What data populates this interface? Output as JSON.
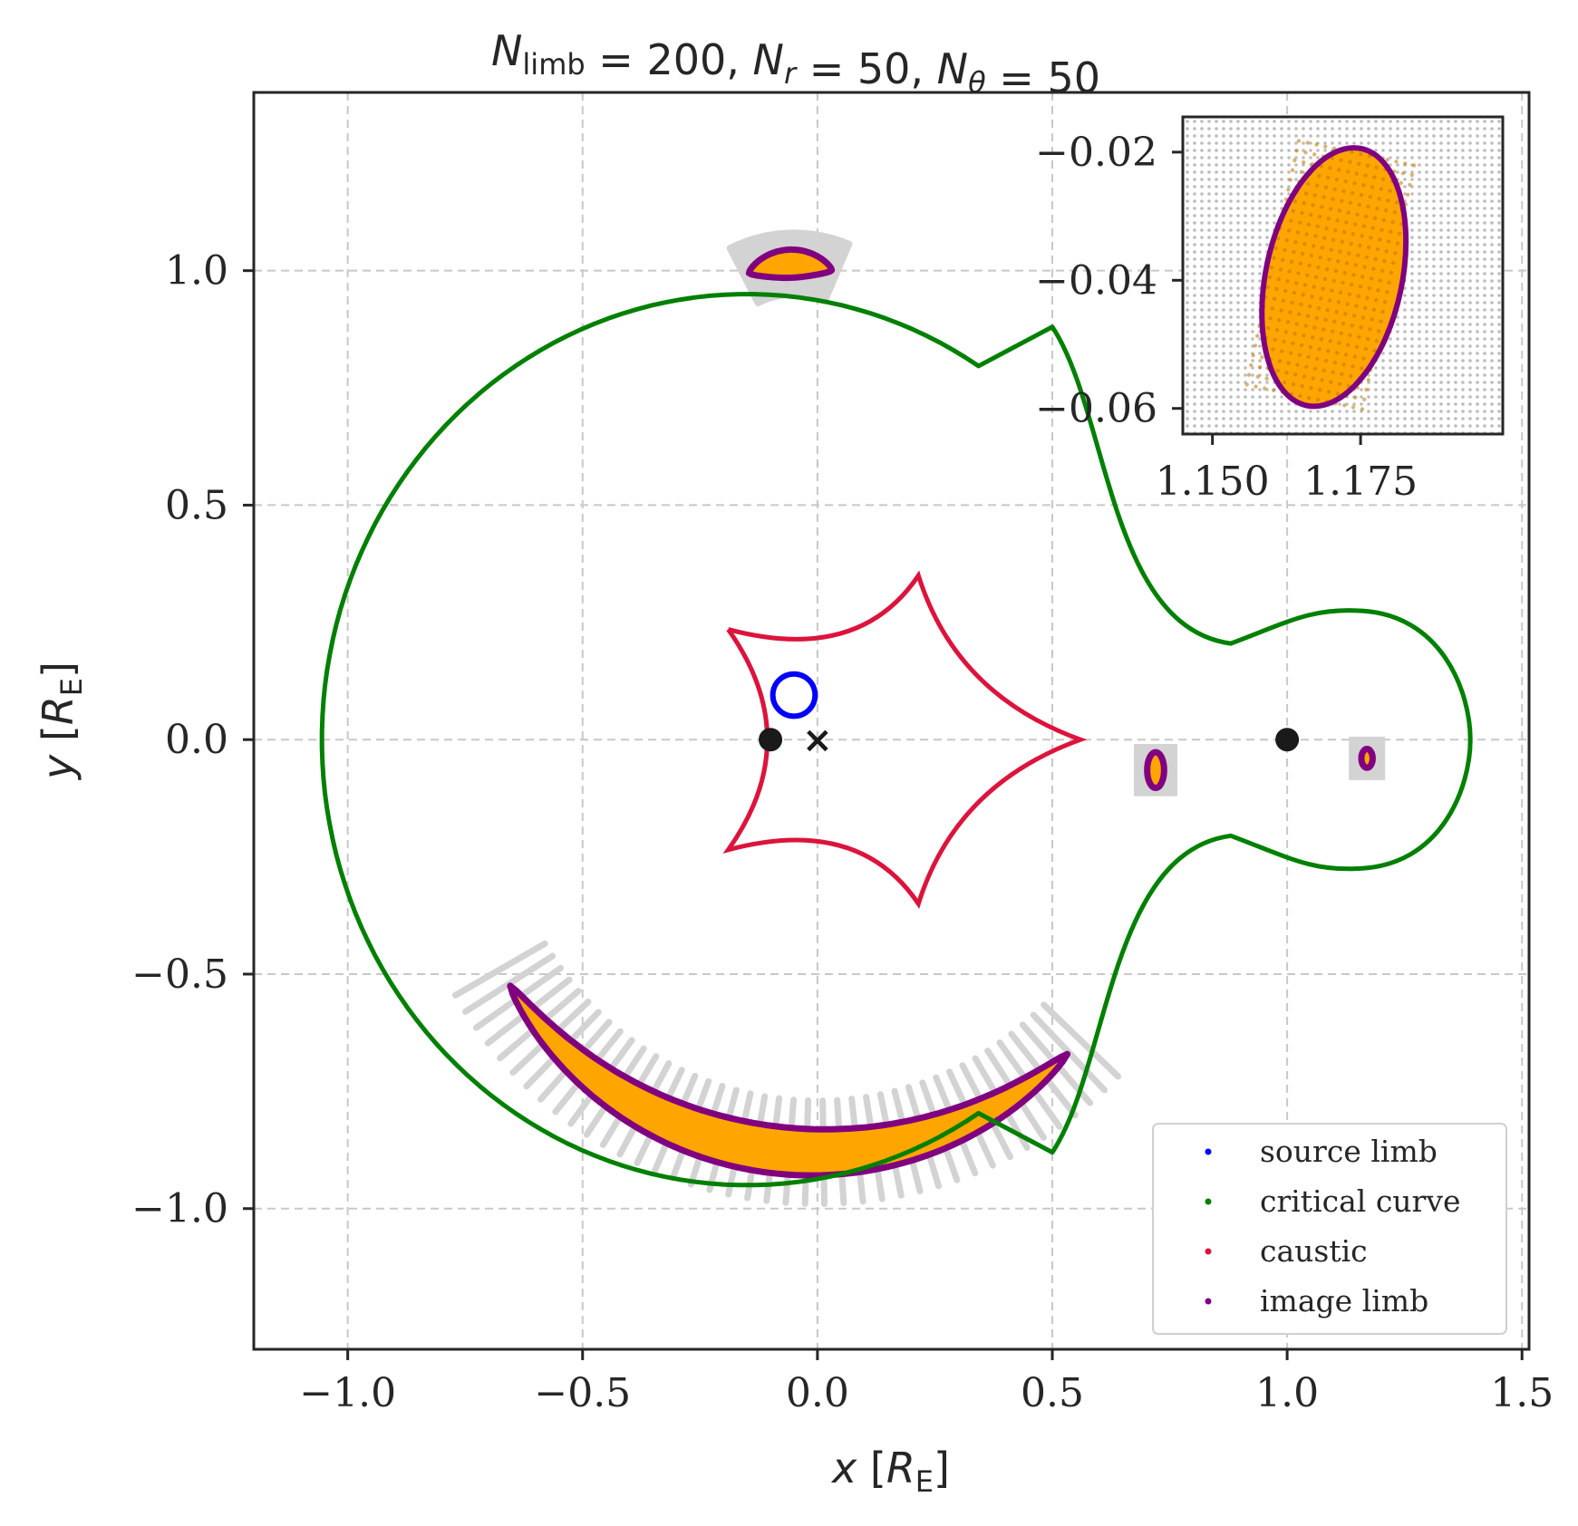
{
  "chart_data": {
    "type": "scatter",
    "title": {
      "parts": [
        {
          "kind": "italic",
          "text": "N"
        },
        {
          "kind": "sub",
          "text": "limb"
        },
        {
          "kind": "plain",
          "text": " = 200, "
        },
        {
          "kind": "italic",
          "text": "N"
        },
        {
          "kind": "subitalic",
          "text": "r"
        },
        {
          "kind": "plain",
          "text": " = 50, "
        },
        {
          "kind": "italic",
          "text": "N"
        },
        {
          "kind": "subitalic",
          "text": "θ"
        },
        {
          "kind": "plain",
          "text": " = 50"
        }
      ]
    },
    "xlabel": {
      "var": "x",
      "bracket_open": " [",
      "R": "R",
      "sub": "E",
      "bracket_close": "]"
    },
    "ylabel": {
      "var": "y",
      "bracket_open": " [",
      "R": "R",
      "sub": "E",
      "bracket_close": "]"
    },
    "xlim": [
      -1.2,
      1.515
    ],
    "ylim": [
      -1.3,
      1.38
    ],
    "xticks": [
      -1.0,
      -0.5,
      0.0,
      0.5,
      1.0,
      1.5
    ],
    "xtick_labels": [
      "−1.0",
      "−0.5",
      "0.0",
      "0.5",
      "1.0",
      "1.5"
    ],
    "yticks": [
      -1.0,
      -0.5,
      0.0,
      0.5,
      1.0
    ],
    "ytick_labels": [
      "−1.0",
      "−0.5",
      "0.0",
      "0.5",
      "1.0"
    ],
    "grid": true,
    "legend_position": "lower-right",
    "legend": [
      {
        "label": "source limb",
        "color": "#0000ff"
      },
      {
        "label": "critical curve",
        "color": "#008000"
      },
      {
        "label": "caustic",
        "color": "#dc143c"
      },
      {
        "label": "image limb",
        "color": "#800080"
      }
    ],
    "lens_masses": [
      {
        "x": -0.1,
        "y": 0.0
      },
      {
        "x": 1.0,
        "y": 0.0
      }
    ],
    "center_of_mass_marker": {
      "x": 0.0,
      "y": 0.0,
      "symbol": "×"
    },
    "source": {
      "center": [
        -0.05,
        0.095
      ],
      "radius": 0.045
    },
    "critical_curve": {
      "big_loop": {
        "cx": -0.15,
        "cy": 0.0,
        "r_left": 0.905,
        "r_top": 0.95
      },
      "neck": {
        "x_right": 0.88,
        "y": 0.205
      },
      "lobe": {
        "cx": 1.15,
        "cy": 0.0,
        "rx": 0.245,
        "ry": 0.275
      }
    },
    "caustic": {
      "cusps": [
        [
          -0.19,
          0.235
        ],
        [
          0.215,
          0.35
        ],
        [
          0.56,
          0.0
        ],
        [
          0.215,
          -0.35
        ],
        [
          -0.19,
          -0.235
        ]
      ]
    },
    "images": [
      {
        "name": "top arc",
        "center": [
          -0.05,
          0.78
        ],
        "radius": 0.235,
        "angle_start": 70,
        "angle_end": 114,
        "half_width_max": 0.03
      },
      {
        "name": "bottom arc",
        "center": [
          0.0,
          -0.1
        ],
        "radius": 0.78,
        "angle_start": 213,
        "angle_end": 313,
        "half_width_max": 0.05
      },
      {
        "name": "small image 1",
        "center": [
          0.72,
          -0.065
        ],
        "rx": 0.018,
        "ry": 0.038
      },
      {
        "name": "small image 2",
        "center": [
          1.17,
          -0.04
        ],
        "rx": 0.012,
        "ry": 0.02
      }
    ],
    "inset": {
      "xlim": [
        1.145,
        1.199
      ],
      "ylim": [
        -0.064,
        -0.0145
      ],
      "xticks": [
        1.15,
        1.175
      ],
      "xtick_labels": [
        "1.150",
        "1.175"
      ],
      "yticks": [
        -0.02,
        -0.04,
        -0.06
      ],
      "ytick_labels": [
        "−0.02",
        "−0.04",
        "−0.06"
      ],
      "image_center": [
        1.1705,
        -0.0395
      ],
      "image_rx": 0.0115,
      "image_ry": 0.0205
    }
  }
}
